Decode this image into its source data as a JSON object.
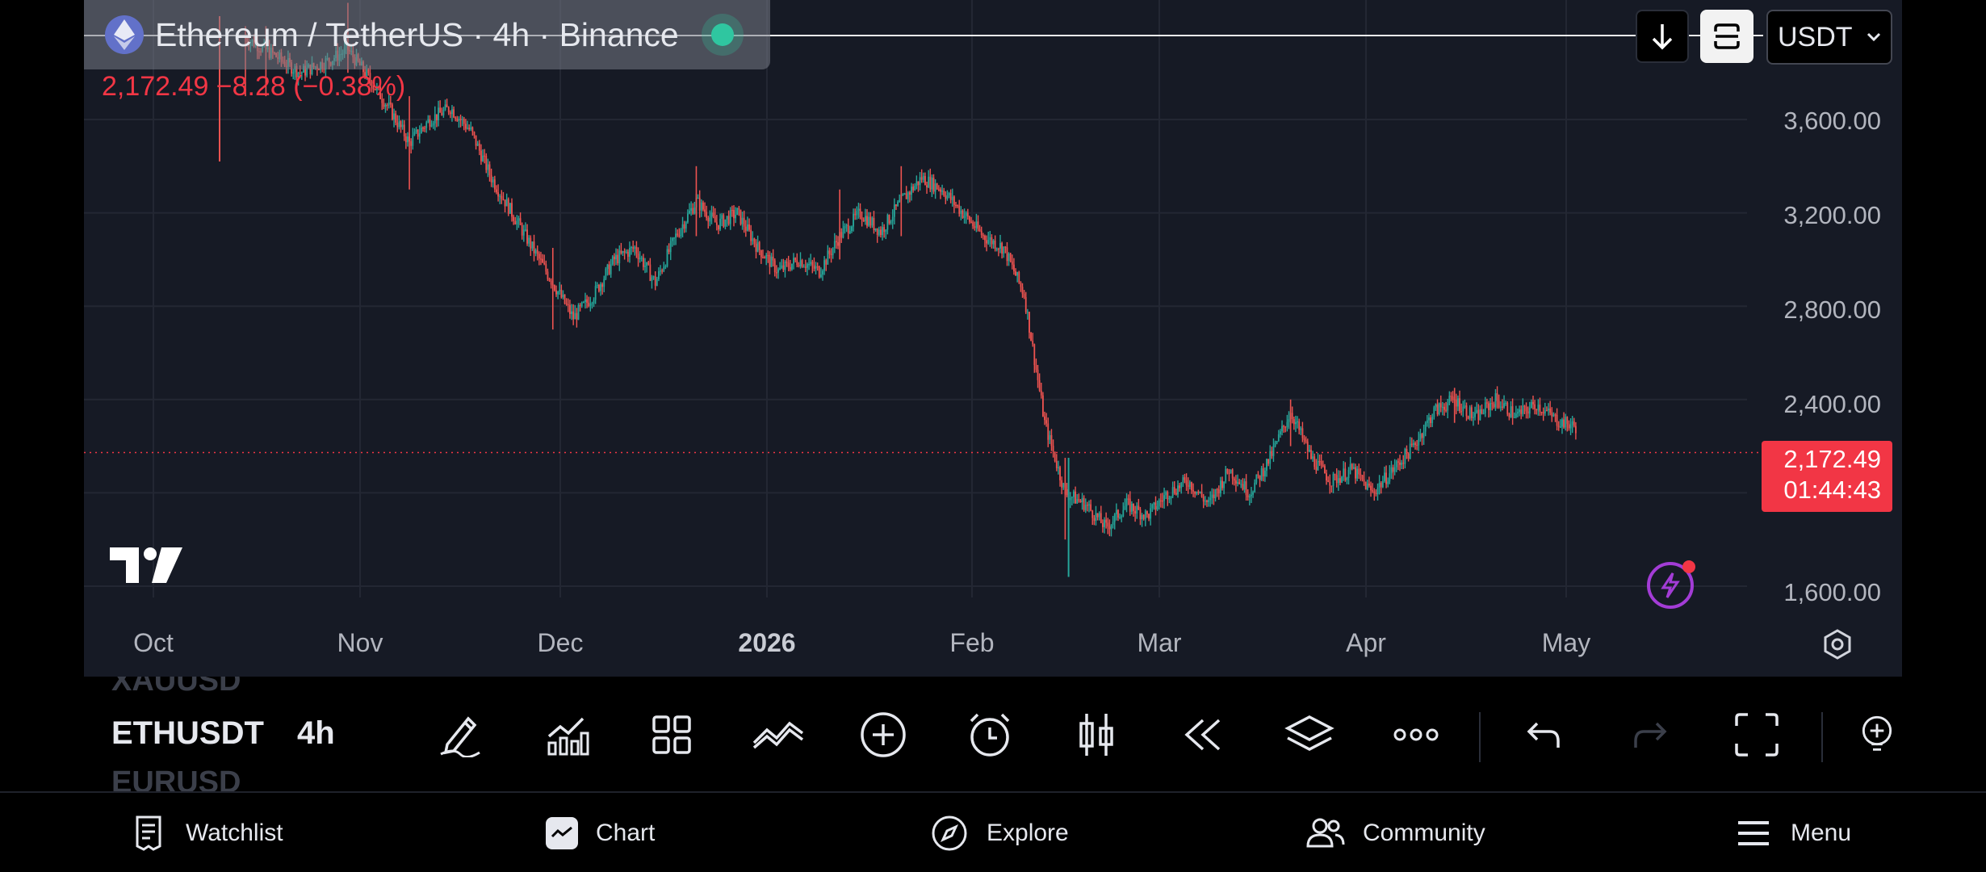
{
  "header": {
    "symbol_title": "Ethereum / TetherUS · 4h · Binance",
    "price_line": "2,172.49 −8.28 (−0.38%)",
    "currency": "USDT"
  },
  "chart_data": {
    "type": "candlestick",
    "y_ticks": [
      "3,600.00",
      "3,200.00",
      "2,800.00",
      "2,400.00",
      "1,600.00"
    ],
    "x_ticks": [
      "Oct",
      "Nov",
      "Dec",
      "2026",
      "Feb",
      "Mar",
      "Apr",
      "May"
    ],
    "last_price": "2,172.49",
    "countdown": "01:44:43",
    "ylim": [
      1600,
      3950
    ],
    "close_path": [
      [
        0,
        3950
      ],
      [
        4,
        3880
      ],
      [
        8,
        3800
      ],
      [
        12,
        3850
      ],
      [
        15,
        3900
      ],
      [
        18,
        3780
      ],
      [
        21,
        3650
      ],
      [
        24,
        3500
      ],
      [
        27,
        3600
      ],
      [
        30,
        3650
      ],
      [
        33,
        3550
      ],
      [
        36,
        3350
      ],
      [
        39,
        3200
      ],
      [
        42,
        3050
      ],
      [
        45,
        2900
      ],
      [
        48,
        2750
      ],
      [
        51,
        2850
      ],
      [
        54,
        3000
      ],
      [
        57,
        3050
      ],
      [
        60,
        2900
      ],
      [
        63,
        3100
      ],
      [
        66,
        3250
      ],
      [
        69,
        3150
      ],
      [
        72,
        3200
      ],
      [
        75,
        3050
      ],
      [
        78,
        2950
      ],
      [
        81,
        3000
      ],
      [
        84,
        2950
      ],
      [
        87,
        3100
      ],
      [
        90,
        3200
      ],
      [
        93,
        3120
      ],
      [
        96,
        3250
      ],
      [
        99,
        3350
      ],
      [
        102,
        3300
      ],
      [
        105,
        3200
      ],
      [
        108,
        3100
      ],
      [
        111,
        3050
      ],
      [
        114,
        2850
      ],
      [
        117,
        2300
      ],
      [
        120,
        2000
      ],
      [
        123,
        1950
      ],
      [
        126,
        1850
      ],
      [
        129,
        1950
      ],
      [
        132,
        1900
      ],
      [
        135,
        2000
      ],
      [
        138,
        2050
      ],
      [
        141,
        1950
      ],
      [
        144,
        2100
      ],
      [
        147,
        2000
      ],
      [
        150,
        2150
      ],
      [
        153,
        2350
      ],
      [
        156,
        2150
      ],
      [
        159,
        2050
      ],
      [
        162,
        2100
      ],
      [
        165,
        2000
      ],
      [
        168,
        2100
      ],
      [
        171,
        2200
      ],
      [
        174,
        2350
      ],
      [
        177,
        2400
      ],
      [
        180,
        2320
      ],
      [
        183,
        2400
      ],
      [
        186,
        2330
      ],
      [
        189,
        2380
      ],
      [
        192,
        2310
      ],
      [
        195,
        2280
      ]
    ],
    "high_low_wicks": [
      [
        0,
        3700,
        4000
      ],
      [
        3,
        3700,
        4000
      ],
      [
        15,
        3800,
        4100
      ],
      [
        24,
        3300,
        3700
      ],
      [
        45,
        2700,
        3050
      ],
      [
        66,
        3100,
        3400
      ],
      [
        87,
        3000,
        3300
      ],
      [
        96,
        3100,
        3400
      ],
      [
        120,
        1800,
        2150
      ],
      [
        153,
        2200,
        2400
      ],
      [
        177,
        2300,
        2450
      ]
    ]
  },
  "toolbar": {
    "symbol_prev": "XAUUSD",
    "symbol_current": "ETHUSDT",
    "symbol_next": "EURUSD",
    "interval": "4h"
  },
  "nav": {
    "watchlist": "Watchlist",
    "chart": "Chart",
    "explore": "Explore",
    "community": "Community",
    "menu": "Menu"
  },
  "colors": {
    "up": "#26a69a",
    "down": "#ef5350",
    "accent_red": "#f23645",
    "background": "#161a25"
  }
}
